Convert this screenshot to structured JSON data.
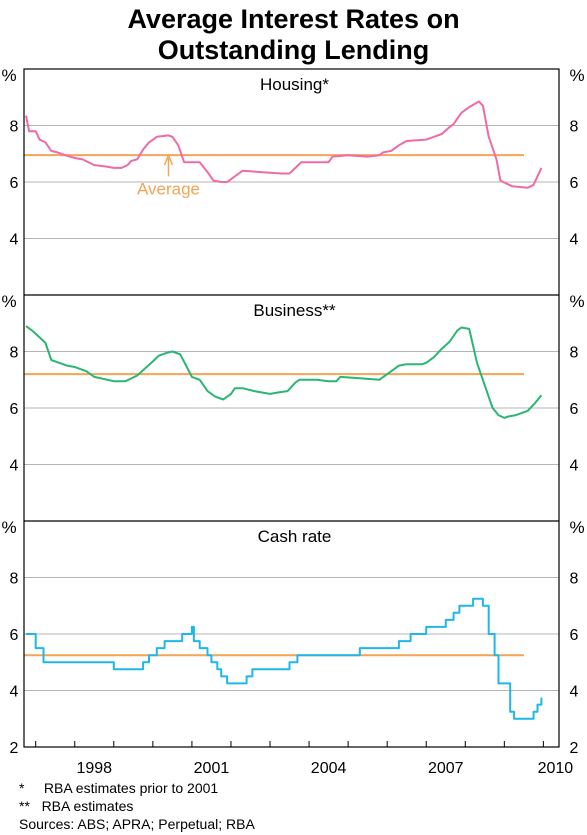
{
  "title_line1": "Average Interest Rates on",
  "title_line2": "Outstanding Lending",
  "footnotes": [
    "*     RBA estimates prior to 2001",
    "**   RBA estimates",
    "Sources: ABS; APRA; Perpetual; RBA"
  ],
  "colors": {
    "housing": "#ef6aa7",
    "business": "#2ab673",
    "cash": "#1fb7ea",
    "average": "#f5a455",
    "grid": "#b5b5b5",
    "frame": "#000000"
  },
  "chart_data": [
    {
      "type": "line",
      "title": "Housing*",
      "ylabel": "%",
      "ylim": [
        2,
        10
      ],
      "yticks": [
        4,
        6,
        8
      ],
      "xlim": [
        1996.7,
        2010.4
      ],
      "xticks": [
        "1998",
        "2001",
        "2004",
        "2007",
        "2010"
      ],
      "grid": true,
      "average": 6.95,
      "annotation": "Average",
      "series": [
        {
          "x": [
            1996.75,
            1996.83,
            1997.0,
            1997.1,
            1997.25,
            1997.4,
            1997.55,
            1997.75,
            1998.0,
            1998.2,
            1998.5,
            1998.8,
            1999.0,
            1999.2,
            1999.35,
            1999.45,
            1999.6,
            1999.75,
            1999.9,
            2000.1,
            2000.4,
            2000.5,
            2000.65,
            2000.8,
            2001.2,
            2001.4,
            2001.55,
            2001.75,
            2001.9,
            2002.3,
            2002.75,
            2003.3,
            2003.5,
            2003.8,
            2004.5,
            2004.6,
            2005.0,
            2005.5,
            2005.8,
            2005.9,
            2006.1,
            2006.3,
            2006.5,
            2007.0,
            2007.2,
            2007.4,
            2007.6,
            2007.7,
            2007.9,
            2008.1,
            2008.35,
            2008.45,
            2008.6,
            2008.65,
            2008.8,
            2008.9,
            2009.2,
            2009.6,
            2009.75,
            2009.85,
            2009.95
          ],
          "y": [
            8.35,
            7.8,
            7.8,
            7.5,
            7.4,
            7.1,
            7.05,
            6.95,
            6.85,
            6.8,
            6.6,
            6.55,
            6.5,
            6.5,
            6.6,
            6.75,
            6.8,
            7.15,
            7.4,
            7.6,
            7.65,
            7.6,
            7.3,
            6.7,
            6.7,
            6.35,
            6.05,
            6.0,
            6.0,
            6.4,
            6.35,
            6.3,
            6.3,
            6.7,
            6.7,
            6.9,
            6.95,
            6.9,
            6.95,
            7.05,
            7.1,
            7.3,
            7.45,
            7.5,
            7.6,
            7.7,
            7.95,
            8.05,
            8.45,
            8.65,
            8.85,
            8.7,
            7.6,
            7.4,
            6.8,
            6.05,
            5.85,
            5.8,
            5.9,
            6.2,
            6.5
          ]
        }
      ]
    },
    {
      "type": "line",
      "title": "Business**",
      "ylabel": "%",
      "ylim": [
        2,
        10
      ],
      "yticks": [
        4,
        6,
        8
      ],
      "xlim": [
        1996.7,
        2010.4
      ],
      "xticks": [
        "1998",
        "2001",
        "2004",
        "2007",
        "2010"
      ],
      "grid": true,
      "average": 7.2,
      "series": [
        {
          "x": [
            1996.75,
            1996.9,
            1997.1,
            1997.25,
            1997.4,
            1997.6,
            1997.8,
            1998.0,
            1998.1,
            1998.3,
            1998.5,
            1999.0,
            1999.3,
            1999.6,
            1999.8,
            2000.0,
            2000.15,
            2000.35,
            2000.5,
            2000.7,
            2000.85,
            2001.0,
            2001.2,
            2001.4,
            2001.6,
            2001.8,
            2002.0,
            2002.1,
            2002.3,
            2002.6,
            2002.8,
            2003.0,
            2003.2,
            2003.45,
            2003.65,
            2003.75,
            2004.2,
            2004.5,
            2004.7,
            2004.8,
            2005.3,
            2005.8,
            2005.9,
            2006.1,
            2006.3,
            2006.5,
            2006.9,
            2007.0,
            2007.2,
            2007.4,
            2007.6,
            2007.8,
            2007.9,
            2008.1,
            2008.3,
            2008.5,
            2008.7,
            2008.85,
            2009.0,
            2009.1,
            2009.3,
            2009.6,
            2009.8,
            2009.95
          ],
          "y": [
            8.9,
            8.75,
            8.5,
            8.3,
            7.7,
            7.6,
            7.5,
            7.45,
            7.4,
            7.3,
            7.1,
            6.95,
            6.95,
            7.15,
            7.4,
            7.65,
            7.85,
            7.95,
            8.0,
            7.9,
            7.5,
            7.1,
            7.0,
            6.6,
            6.4,
            6.3,
            6.5,
            6.7,
            6.7,
            6.6,
            6.55,
            6.5,
            6.55,
            6.6,
            6.9,
            7.0,
            7.0,
            6.95,
            6.95,
            7.1,
            7.05,
            7.0,
            7.1,
            7.3,
            7.5,
            7.55,
            7.55,
            7.6,
            7.8,
            8.1,
            8.35,
            8.75,
            8.85,
            8.8,
            7.6,
            6.8,
            6.0,
            5.75,
            5.65,
            5.7,
            5.75,
            5.9,
            6.2,
            6.45
          ]
        }
      ]
    },
    {
      "type": "line",
      "title": "Cash rate",
      "ylabel": "%",
      "ylim": [
        2,
        10
      ],
      "yticks": [
        2,
        4,
        6,
        8
      ],
      "xlim": [
        1996.7,
        2010.4
      ],
      "xticks": [
        "1998",
        "2001",
        "2004",
        "2007",
        "2010"
      ],
      "grid": true,
      "average": 5.25,
      "step": true,
      "series": [
        {
          "x": [
            1996.75,
            1997.0,
            1997.2,
            1998.0,
            1999.0,
            1999.5,
            1999.75,
            1999.9,
            2000.1,
            2000.3,
            2000.75,
            2001.0,
            2001.05,
            2001.2,
            2001.4,
            2001.5,
            2001.65,
            2001.75,
            2001.9,
            2002.4,
            2002.55,
            2003.3,
            2003.5,
            2003.7,
            2005.0,
            2005.3,
            2006.0,
            2006.3,
            2006.6,
            2007.0,
            2007.2,
            2007.5,
            2007.7,
            2007.85,
            2008.2,
            2008.3,
            2008.45,
            2008.6,
            2008.75,
            2008.85,
            2008.95,
            2009.15,
            2009.25,
            2009.75,
            2009.85,
            2009.95
          ],
          "y": [
            6.0,
            5.5,
            5.0,
            5.0,
            4.75,
            4.75,
            5.0,
            5.25,
            5.5,
            5.75,
            6.0,
            6.25,
            5.75,
            5.5,
            5.25,
            5.0,
            4.75,
            4.5,
            4.25,
            4.5,
            4.75,
            4.75,
            5.0,
            5.25,
            5.25,
            5.5,
            5.5,
            5.75,
            6.0,
            6.25,
            6.25,
            6.5,
            6.75,
            7.0,
            7.25,
            7.25,
            7.0,
            6.0,
            5.25,
            4.25,
            4.25,
            3.25,
            3.0,
            3.25,
            3.5,
            3.75
          ]
        }
      ]
    }
  ]
}
